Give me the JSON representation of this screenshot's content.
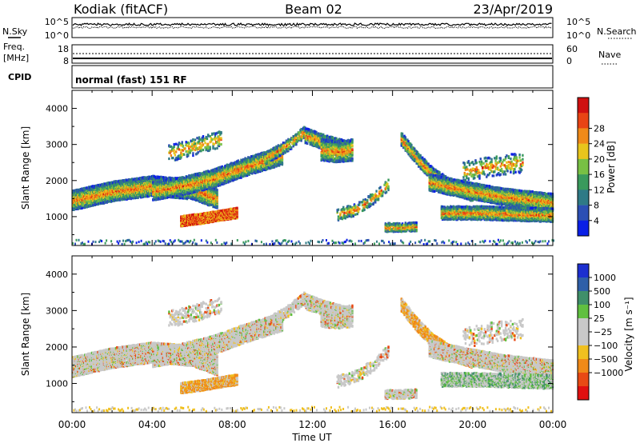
{
  "header": {
    "station": "Kodiak (fitACF)",
    "beam": "Beam 02",
    "date": "23/Apr/2019"
  },
  "status": {
    "nsky_label": "N.Sky",
    "nsky_ticks": [
      "10^5",
      "10^0"
    ],
    "nsearch_label": "N.Search",
    "nsearch_ticks": [
      "10^5",
      "10^0"
    ],
    "freq_label": [
      "Freq.",
      "[MHz]"
    ],
    "freq_ticks": [
      "18",
      "8"
    ],
    "nave_label": "Nave",
    "nave_ticks": [
      "60",
      "0"
    ],
    "cpid_label": "CPID",
    "cpid_text": "normal (fast) 151 RF"
  },
  "chart_data": [
    {
      "type": "heatmap",
      "name": "power",
      "x_ticks": [
        "00:00",
        "04:00",
        "08:00",
        "12:00",
        "16:00",
        "20:00",
        "00:00"
      ],
      "xlim": [
        0,
        24
      ],
      "ylabel": "Slant Range [km]",
      "y_ticks": [
        1000,
        2000,
        3000,
        4000
      ],
      "ylim": [
        200,
        4500
      ],
      "colorbar": {
        "label": "Power [dB]",
        "ticks": [
          "4",
          "8",
          "12",
          "16",
          "20",
          "24",
          "28"
        ],
        "colors": [
          "#0a1fe6",
          "#2c4fb4",
          "#2f7a86",
          "#3a9a5c",
          "#78c044",
          "#e8c51c",
          "#f08a18",
          "#e84414",
          "#d01010"
        ]
      }
    },
    {
      "type": "heatmap",
      "name": "velocity",
      "x_ticks": [
        "00:00",
        "04:00",
        "08:00",
        "12:00",
        "16:00",
        "20:00",
        "00:00"
      ],
      "xlim": [
        0,
        24
      ],
      "xlabel": "Time UT",
      "ylabel": "Slant Range [km]",
      "y_ticks": [
        1000,
        2000,
        3000,
        4000
      ],
      "ylim": [
        200,
        4500
      ],
      "colorbar": {
        "label": "Velocity [m s⁻¹]",
        "ticks": [
          "1000",
          "500",
          "100",
          "25",
          "−25",
          "−100",
          "−500",
          "−1000"
        ],
        "colors": [
          "#1c2fd0",
          "#2f5fa8",
          "#3f8f6a",
          "#60c040",
          "#c8c8c8",
          "#c8c8c8",
          "#f0c020",
          "#f08a18",
          "#e84a14",
          "#e01010"
        ]
      }
    }
  ],
  "bands": [
    {
      "name": "main-arc",
      "t": [
        0,
        2,
        4,
        6,
        7.2
      ],
      "r": [
        1450,
        1700,
        1850,
        1750,
        1500
      ],
      "w": 260,
      "d": 0.85
    },
    {
      "name": "rising-arc",
      "t": [
        4,
        5.5,
        7,
        8.5,
        10.5
      ],
      "r": [
        1700,
        1850,
        2050,
        2350,
        2700
      ],
      "w": 240,
      "d": 0.7
    },
    {
      "name": "inner-layer",
      "t": [
        5.4,
        6.5,
        7.6,
        8.2
      ],
      "r": [
        870,
        950,
        1050,
        1100
      ],
      "w": 130,
      "d": 0.95
    },
    {
      "name": "upper-scatter",
      "t": [
        4.8,
        6.2,
        7.4
      ],
      "r": [
        2750,
        2950,
        3150
      ],
      "w": 220,
      "d": 0.18
    },
    {
      "name": "cusp-left",
      "t": [
        9.6,
        10.8,
        11.6
      ],
      "r": [
        2600,
        3000,
        3350
      ],
      "w": 150,
      "d": 0.45
    },
    {
      "name": "cusp-right",
      "t": [
        11.6,
        12.6,
        13.6
      ],
      "r": [
        3250,
        3050,
        2900
      ],
      "w": 200,
      "d": 0.55
    },
    {
      "name": "mid-blob",
      "t": [
        12.4,
        13.2,
        14.0
      ],
      "r": [
        2850,
        2800,
        2850
      ],
      "w": 280,
      "d": 0.6
    },
    {
      "name": "falling-left",
      "t": [
        13.2,
        14.2,
        15.0,
        15.8
      ],
      "r": [
        1050,
        1200,
        1500,
        1900
      ],
      "w": 160,
      "d": 0.25
    },
    {
      "name": "low-patch",
      "t": [
        15.6,
        16.4,
        17.2
      ],
      "r": [
        700,
        700,
        720
      ],
      "w": 110,
      "d": 0.6
    },
    {
      "name": "steep-arc",
      "t": [
        16.4,
        17.2,
        18.0,
        19.0,
        20.0
      ],
      "r": [
        3150,
        2600,
        2150,
        1800,
        1600
      ],
      "w": 170,
      "d": 0.6
    },
    {
      "name": "late-arc-upper",
      "t": [
        17.8,
        19.5,
        21.5,
        24
      ],
      "r": [
        1950,
        1750,
        1550,
        1400
      ],
      "w": 220,
      "d": 0.8
    },
    {
      "name": "late-arc-lower",
      "t": [
        18.4,
        20.5,
        22.5,
        24
      ],
      "r": [
        1100,
        1100,
        1060,
        1040
      ],
      "w": 180,
      "d": 0.75
    },
    {
      "name": "late-scatter",
      "t": [
        19.5,
        21.0,
        22.5
      ],
      "r": [
        2250,
        2400,
        2500
      ],
      "w": 260,
      "d": 0.15
    }
  ]
}
